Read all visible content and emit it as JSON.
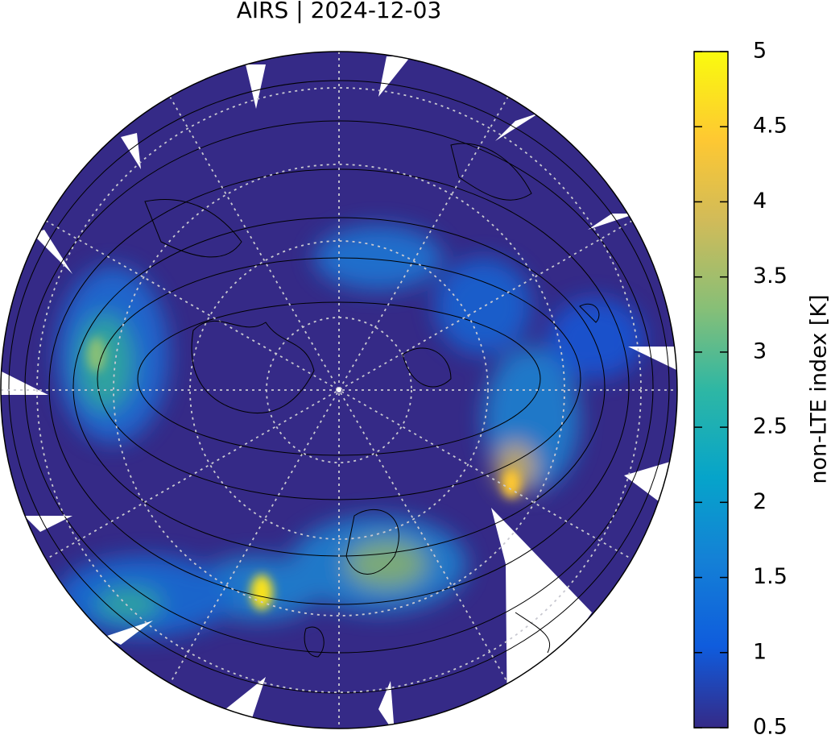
{
  "title": "AIRS | 2024-12-03",
  "colorbar": {
    "label": "non-LTE index [K]",
    "lim": [
      0.5,
      5
    ],
    "ticks": [
      0.5,
      1,
      1.5,
      2,
      2.5,
      3,
      3.5,
      4,
      4.5,
      5
    ]
  }
}
